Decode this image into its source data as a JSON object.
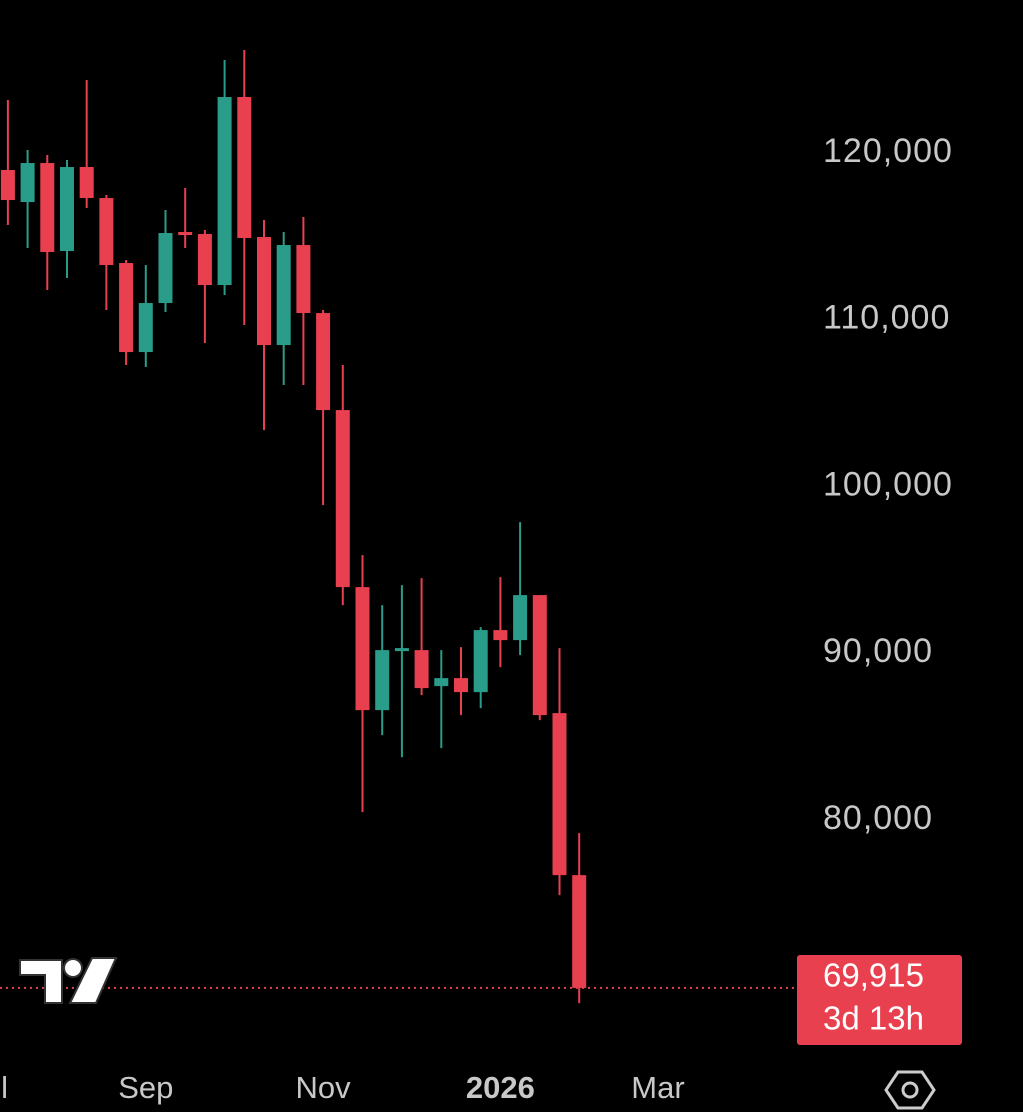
{
  "chart_data": {
    "type": "candlestick",
    "categories": [
      null,
      null,
      null,
      null,
      null,
      null,
      null,
      null,
      null,
      null,
      null,
      null,
      null,
      null,
      null,
      null,
      null,
      null,
      null,
      null,
      null,
      null,
      null,
      null,
      null,
      null,
      null,
      null,
      null,
      null
    ],
    "open": [
      118980,
      117060,
      119400,
      114120,
      119160,
      117300,
      113400,
      108060,
      111000,
      115260,
      115140,
      112080,
      123360,
      114960,
      108480,
      114480,
      110400,
      104580,
      93960,
      86580,
      90120,
      90180,
      88020,
      88500,
      87660,
      91380,
      90780,
      93480,
      86400,
      76680
    ],
    "high": [
      123180,
      120180,
      119880,
      119580,
      124380,
      117480,
      113580,
      113280,
      116580,
      117900,
      115380,
      125580,
      126180,
      115980,
      115260,
      116160,
      110580,
      107280,
      95880,
      92880,
      94080,
      94500,
      90180,
      90360,
      91560,
      94560,
      97860,
      93480,
      90300,
      79200
    ],
    "low": [
      115680,
      114300,
      111780,
      112500,
      116700,
      110580,
      107280,
      107160,
      110460,
      114300,
      108600,
      111480,
      109680,
      103380,
      106080,
      106080,
      98880,
      92880,
      80460,
      85080,
      83760,
      87480,
      84300,
      86280,
      86700,
      89160,
      89880,
      85980,
      75480,
      69000
    ],
    "close": [
      117180,
      119400,
      114060,
      119160,
      117300,
      113280,
      108060,
      111000,
      115200,
      115080,
      112080,
      123360,
      114900,
      108480,
      114480,
      110400,
      104580,
      93960,
      86580,
      90180,
      90300,
      87900,
      88500,
      87660,
      91380,
      90780,
      93480,
      86280,
      76680,
      69915
    ],
    "up_color": "#2a9d8a",
    "down_color": "#e8404f",
    "xlim": [
      -0.4,
      39.7
    ],
    "ylim": [
      65590,
      129180
    ],
    "yticks": [
      {
        "value": 80000,
        "label": "80,000"
      },
      {
        "value": 90000,
        "label": "90,000"
      },
      {
        "value": 100000,
        "label": "100,000"
      },
      {
        "value": 110000,
        "label": "110,000"
      },
      {
        "value": 120000,
        "label": "120,000"
      }
    ],
    "xticks": [
      {
        "value": -1,
        "label": "Jul"
      },
      {
        "value": 7,
        "label": "Sep"
      },
      {
        "value": 16,
        "label": "Nov"
      },
      {
        "value": 25,
        "label": "2026",
        "bold": true
      },
      {
        "value": 33,
        "label": "Mar"
      }
    ],
    "last_price_label": "69,915",
    "countdown": "3d 13h",
    "grid": false
  }
}
